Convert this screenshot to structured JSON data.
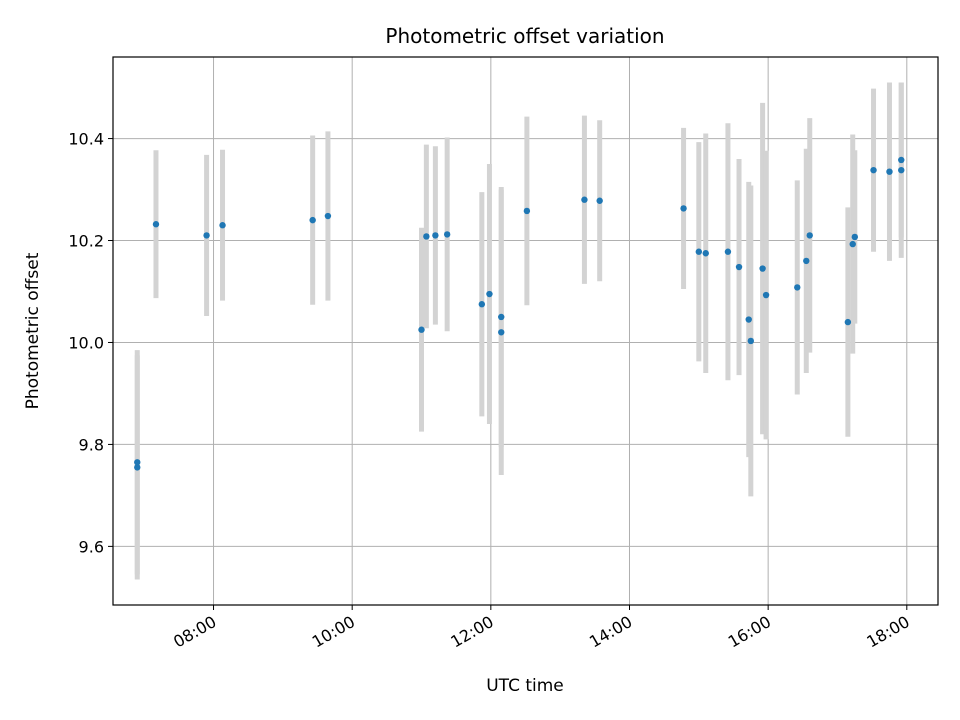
{
  "chart_data": {
    "type": "scatter",
    "title": "Photometric offset variation",
    "xlabel": "UTC time",
    "ylabel": "Photometric offset",
    "x_unit": "hours UTC",
    "xlim": [
      6.55,
      18.45
    ],
    "ylim": [
      9.485,
      10.56
    ],
    "x_ticks": [
      {
        "value": 8,
        "label": "08:00"
      },
      {
        "value": 10,
        "label": "10:00"
      },
      {
        "value": 12,
        "label": "12:00"
      },
      {
        "value": 14,
        "label": "14:00"
      },
      {
        "value": 16,
        "label": "16:00"
      },
      {
        "value": 18,
        "label": "18:00"
      }
    ],
    "y_ticks": [
      {
        "value": 9.6,
        "label": "9.6"
      },
      {
        "value": 9.8,
        "label": "9.8"
      },
      {
        "value": 10.0,
        "label": "10.0"
      },
      {
        "value": 10.2,
        "label": "10.2"
      },
      {
        "value": 10.4,
        "label": "10.4"
      }
    ],
    "grid": true,
    "point_color": "#1f77b4",
    "errorbar_color": "#d3d3d3",
    "points": [
      {
        "x": 6.9,
        "y": 9.765,
        "err": 0.22
      },
      {
        "x": 6.9,
        "y": 9.755,
        "err": 0.22
      },
      {
        "x": 7.17,
        "y": 10.232,
        "err": 0.145
      },
      {
        "x": 7.9,
        "y": 10.21,
        "err": 0.158
      },
      {
        "x": 8.13,
        "y": 10.23,
        "err": 0.148
      },
      {
        "x": 9.43,
        "y": 10.24,
        "err": 0.166
      },
      {
        "x": 9.65,
        "y": 10.248,
        "err": 0.166
      },
      {
        "x": 11.0,
        "y": 10.025,
        "err": 0.2
      },
      {
        "x": 11.07,
        "y": 10.208,
        "err": 0.18
      },
      {
        "x": 11.2,
        "y": 10.21,
        "err": 0.175
      },
      {
        "x": 11.37,
        "y": 10.212,
        "err": 0.19
      },
      {
        "x": 11.87,
        "y": 10.075,
        "err": 0.22
      },
      {
        "x": 11.98,
        "y": 10.095,
        "err": 0.255
      },
      {
        "x": 12.15,
        "y": 10.05,
        "err": 0.255
      },
      {
        "x": 12.15,
        "y": 10.02,
        "err": 0.28
      },
      {
        "x": 12.52,
        "y": 10.258,
        "err": 0.185
      },
      {
        "x": 13.35,
        "y": 10.28,
        "err": 0.165
      },
      {
        "x": 13.57,
        "y": 10.278,
        "err": 0.158
      },
      {
        "x": 14.78,
        "y": 10.263,
        "err": 0.158
      },
      {
        "x": 15.0,
        "y": 10.178,
        "err": 0.215
      },
      {
        "x": 15.1,
        "y": 10.175,
        "err": 0.235
      },
      {
        "x": 15.42,
        "y": 10.178,
        "err": 0.252
      },
      {
        "x": 15.58,
        "y": 10.148,
        "err": 0.212
      },
      {
        "x": 15.72,
        "y": 10.045,
        "err": 0.27
      },
      {
        "x": 15.75,
        "y": 10.003,
        "err": 0.305
      },
      {
        "x": 15.92,
        "y": 10.145,
        "err": 0.325
      },
      {
        "x": 15.97,
        "y": 10.093,
        "err": 0.283
      },
      {
        "x": 16.42,
        "y": 10.108,
        "err": 0.21
      },
      {
        "x": 16.55,
        "y": 10.16,
        "err": 0.22
      },
      {
        "x": 16.6,
        "y": 10.21,
        "err": 0.23
      },
      {
        "x": 17.15,
        "y": 10.04,
        "err": 0.225
      },
      {
        "x": 17.22,
        "y": 10.193,
        "err": 0.215
      },
      {
        "x": 17.25,
        "y": 10.207,
        "err": 0.17
      },
      {
        "x": 17.52,
        "y": 10.338,
        "err": 0.16
      },
      {
        "x": 17.75,
        "y": 10.335,
        "err": 0.175
      },
      {
        "x": 17.92,
        "y": 10.358,
        "err": 0.152
      },
      {
        "x": 17.92,
        "y": 10.338,
        "err": 0.172
      }
    ]
  }
}
